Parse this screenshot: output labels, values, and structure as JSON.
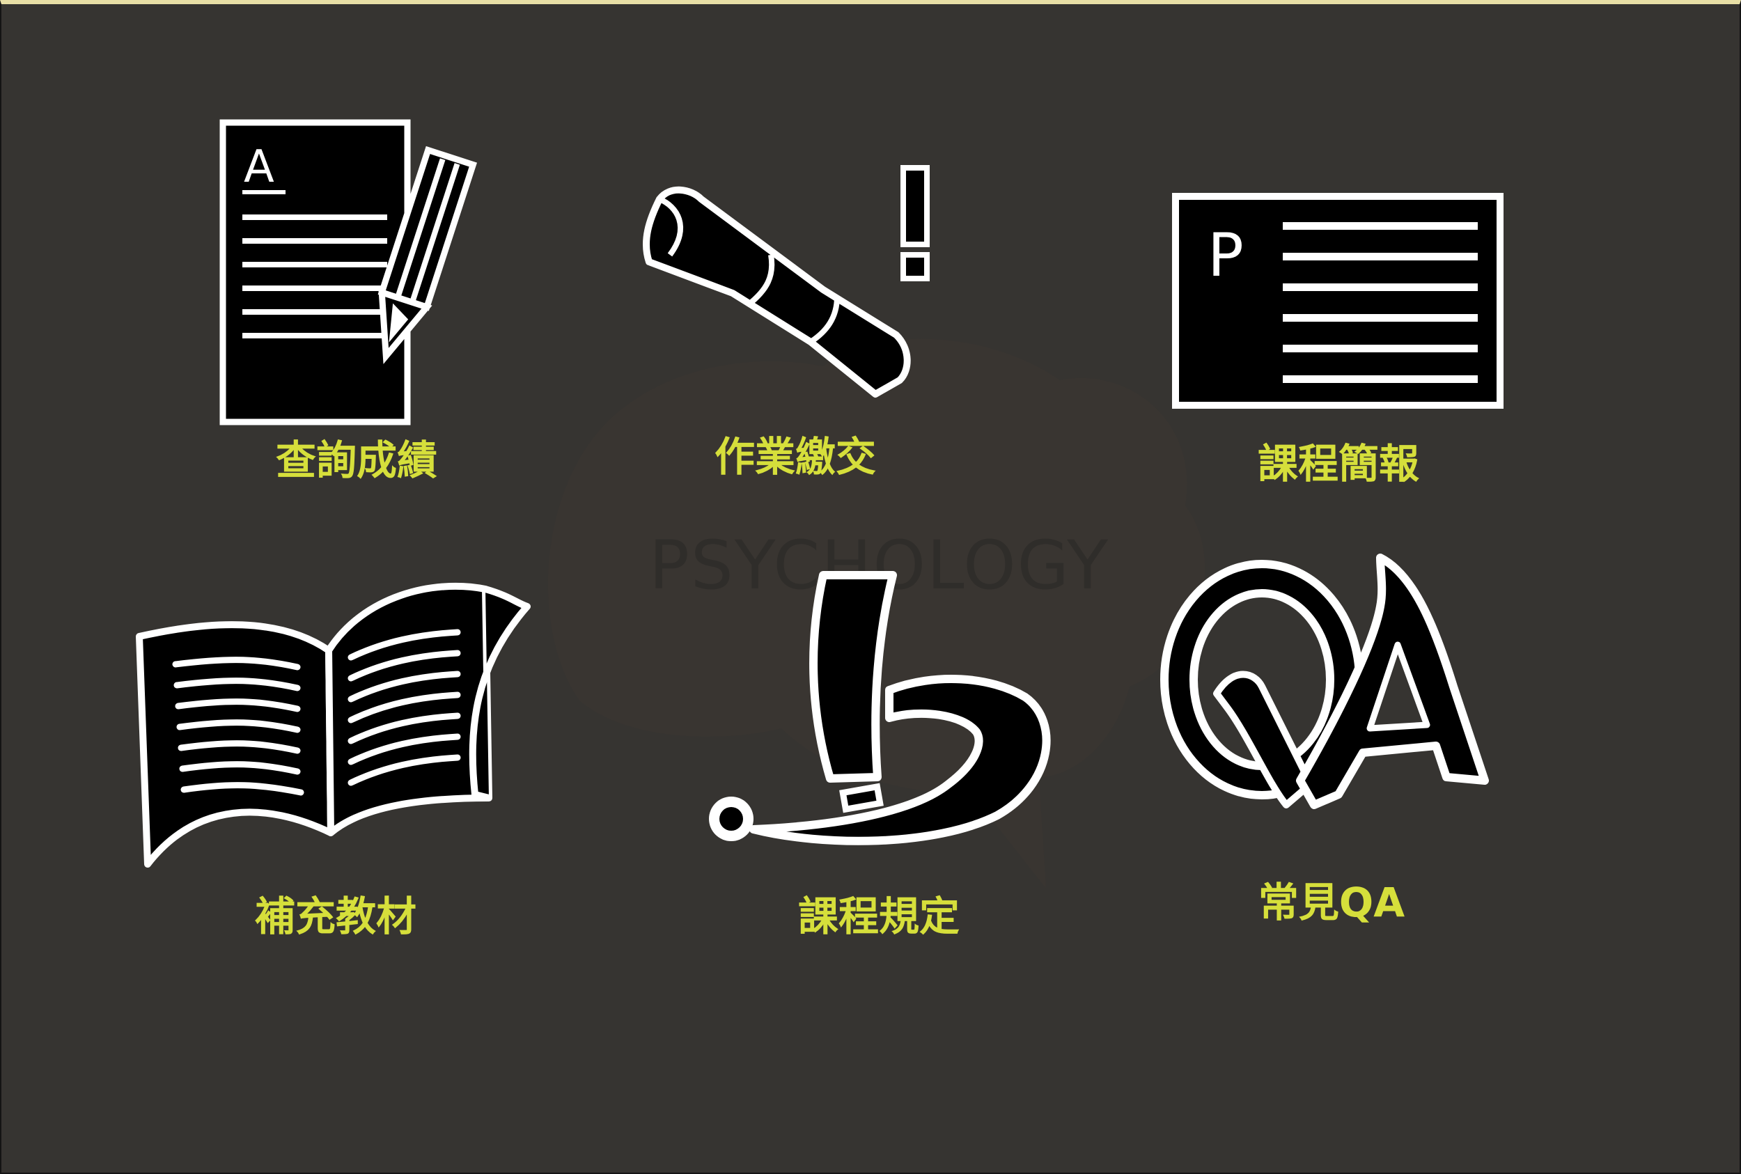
{
  "colors": {
    "background": "#363431",
    "label": "#d6df3b",
    "top_border": "#e8dfa6",
    "icon_fill": "#000000",
    "icon_outline": "#ffffff"
  },
  "watermark": {
    "text": "PSYCHOLOGY"
  },
  "menu": {
    "items": [
      {
        "id": "grades",
        "icon": "graded-document-icon",
        "label": "查詢成績",
        "glyph": "A"
      },
      {
        "id": "homework",
        "icon": "scroll-alert-icon",
        "label": "作業繳交",
        "glyph": "!"
      },
      {
        "id": "slides",
        "icon": "presentation-icon",
        "label": "課程簡報",
        "glyph": "P"
      },
      {
        "id": "materials",
        "icon": "open-book-icon",
        "label": "補充教材"
      },
      {
        "id": "rules",
        "icon": "rules-hook-icon",
        "label": "課程規定"
      },
      {
        "id": "faq",
        "icon": "qa-icon",
        "label": "常見QA",
        "glyph": "QA"
      }
    ]
  }
}
